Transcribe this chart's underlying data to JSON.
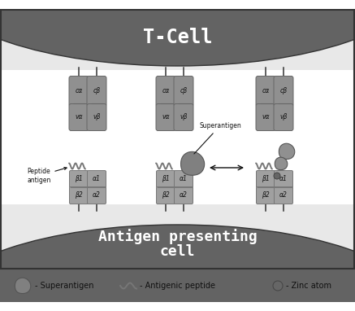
{
  "bg_color": "#ffffff",
  "dark_gray": "#555555",
  "medium_gray": "#888888",
  "light_gray": "#aaaaaa",
  "receptor_color": "#909090",
  "receptor_edge": "#666666",
  "mhc_color": "#a0a0a0",
  "mhc_edge": "#777777",
  "text_dark": "#111111",
  "text_white": "#ffffff",
  "superantigen_color": "#808080",
  "superantigen_edge": "#555555",
  "zinc_color": "#666666",
  "membrane_line": "#333333",
  "tcell_label": "T-Cell",
  "apc_label": "Antigen presenting\ncell",
  "superantigen_label": "Superantigen",
  "peptide_label": "Peptide\nantigen",
  "legend_sa": "- Superantigen",
  "legend_ap": "- Antigenic peptide",
  "legend_za": "- Zinc atom",
  "fig_width": 4.37,
  "fig_height": 3.82,
  "dpi": 100
}
